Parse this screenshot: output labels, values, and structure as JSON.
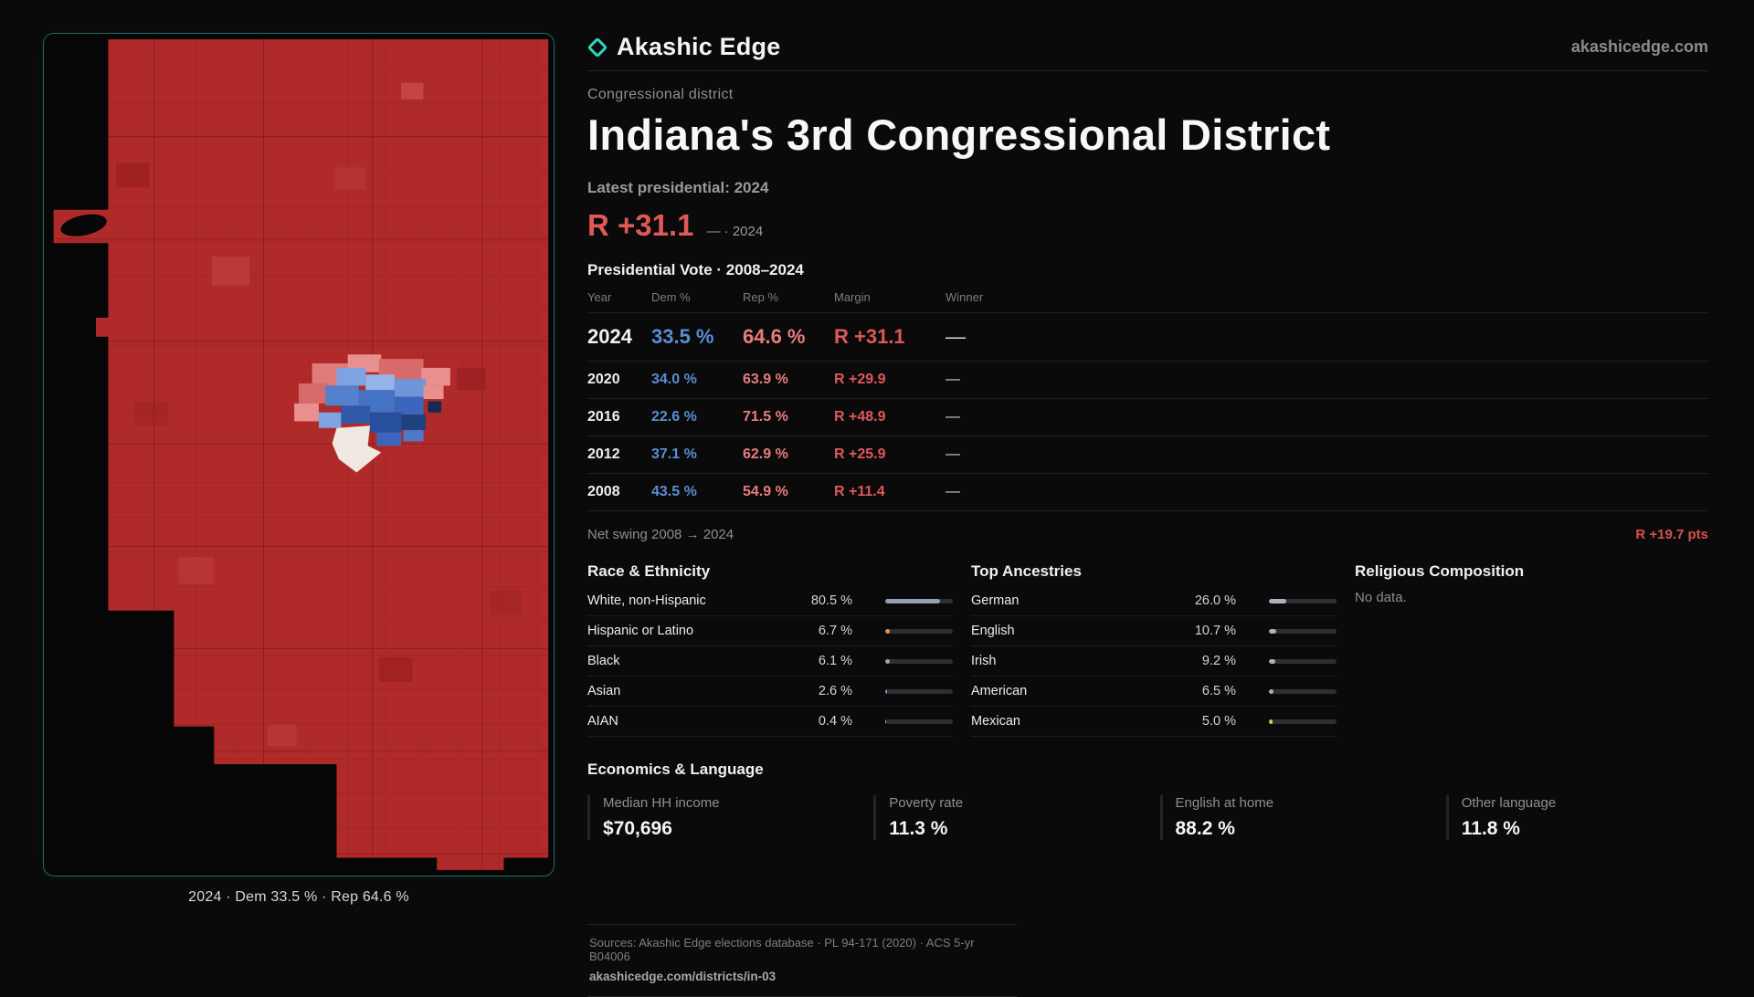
{
  "brand": {
    "name": "Akashic Edge",
    "site": "akashicedge.com"
  },
  "page": {
    "kicker": "Congressional district",
    "title": "Indiana's 3rd Congressional District",
    "latest_label": "Latest presidential: 2024",
    "headline_margin": "R +31.1",
    "headline_note": "— · 2024",
    "table_title": "Presidential Vote · 2008–2024"
  },
  "map": {
    "caption": "2024 · Dem 33.5 % · Rep 64.6 %"
  },
  "vote_table": {
    "columns": [
      "Year",
      "Dem %",
      "Rep %",
      "Margin",
      "Winner"
    ],
    "rows": [
      {
        "year": "2024",
        "dem": "33.5 %",
        "rep": "64.6 %",
        "margin": "R +31.1",
        "winner": "—"
      },
      {
        "year": "2020",
        "dem": "34.0 %",
        "rep": "63.9 %",
        "margin": "R +29.9",
        "winner": "—"
      },
      {
        "year": "2016",
        "dem": "22.6 %",
        "rep": "71.5 %",
        "margin": "R +48.9",
        "winner": "—"
      },
      {
        "year": "2012",
        "dem": "37.1 %",
        "rep": "62.9 %",
        "margin": "R +25.9",
        "winner": "—"
      },
      {
        "year": "2008",
        "dem": "43.5 %",
        "rep": "54.9 %",
        "margin": "R +11.4",
        "winner": "—"
      }
    ]
  },
  "net_swing": {
    "label": "Net swing 2008 → 2024",
    "value": "R +19.7 pts"
  },
  "race": {
    "title": "Race & Ethnicity",
    "rows": [
      {
        "label": "White, non-Hispanic",
        "value": "80.5 %",
        "pct": 80.5,
        "color": "#93a0b4"
      },
      {
        "label": "Hispanic or Latino",
        "value": "6.7 %",
        "pct": 6.7,
        "color": "#e0973f"
      },
      {
        "label": "Black",
        "value": "6.1 %",
        "pct": 6.1,
        "color": "#9aa5ad"
      },
      {
        "label": "Asian",
        "value": "2.6 %",
        "pct": 2.6,
        "color": "#6aa6c8"
      },
      {
        "label": "AIAN",
        "value": "0.4 %",
        "pct": 0.4,
        "color": "#b5bec6"
      }
    ]
  },
  "ancestries": {
    "title": "Top Ancestries",
    "rows": [
      {
        "label": "German",
        "value": "26.0 %",
        "pct": 26.0,
        "color": "#a9b2bd"
      },
      {
        "label": "English",
        "value": "10.7 %",
        "pct": 10.7,
        "color": "#a9b2bd"
      },
      {
        "label": "Irish",
        "value": "9.2 %",
        "pct": 9.2,
        "color": "#a9b2bd"
      },
      {
        "label": "American",
        "value": "6.5 %",
        "pct": 6.5,
        "color": "#a9b2bd"
      },
      {
        "label": "Mexican",
        "value": "5.0 %",
        "pct": 5.0,
        "color": "#e3c93f"
      }
    ]
  },
  "religion": {
    "title": "Religious Composition",
    "empty": "No data."
  },
  "economics": {
    "title": "Economics & Language",
    "stats": [
      {
        "label": "Median HH income",
        "value": "$70,696"
      },
      {
        "label": "Poverty rate",
        "value": "11.3 %"
      },
      {
        "label": "English at home",
        "value": "88.2 %"
      },
      {
        "label": "Other language",
        "value": "11.8 %"
      }
    ]
  },
  "footer": {
    "sources": "Sources: Akashic Edge elections database · PL 94-171 (2020) · ACS 5-yr B04006",
    "link": "akashicedge.com/districts/in-03"
  },
  "colors": {
    "dem": "#5b8dd6",
    "rep": "#e97c7c",
    "rep-strong": "#e05858",
    "teal": "#2fd4c0",
    "map-red": "#b02a2a"
  },
  "chart_data": [
    {
      "type": "table",
      "title": "Presidential Vote · 2008–2024",
      "columns": [
        "Year",
        "Dem %",
        "Rep %",
        "Margin (R+)"
      ],
      "rows": [
        [
          2024,
          33.5,
          64.6,
          31.1
        ],
        [
          2020,
          34.0,
          63.9,
          29.9
        ],
        [
          2016,
          22.6,
          71.5,
          48.9
        ],
        [
          2012,
          37.1,
          62.9,
          25.9
        ],
        [
          2008,
          43.5,
          54.9,
          11.4
        ]
      ],
      "net_swing": "R +19.7 pts"
    },
    {
      "type": "bar",
      "title": "Race & Ethnicity",
      "categories": [
        "White, non-Hispanic",
        "Hispanic or Latino",
        "Black",
        "Asian",
        "AIAN"
      ],
      "values": [
        80.5,
        6.7,
        6.1,
        2.6,
        0.4
      ],
      "unit": "%",
      "xlim": [
        0,
        100
      ]
    },
    {
      "type": "bar",
      "title": "Top Ancestries",
      "categories": [
        "German",
        "English",
        "Irish",
        "American",
        "Mexican"
      ],
      "values": [
        26.0,
        10.7,
        9.2,
        6.5,
        5.0
      ],
      "unit": "%",
      "xlim": [
        0,
        100
      ]
    }
  ]
}
